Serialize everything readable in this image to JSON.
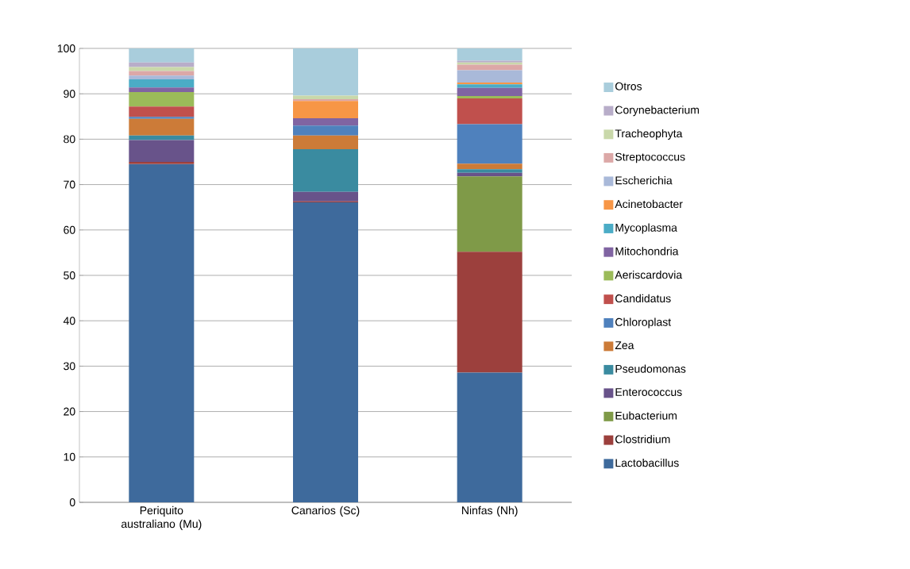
{
  "chart_data": {
    "type": "bar",
    "stacked": true,
    "categories": [
      "Periquito australiano (Mu)",
      "Canarios (Sc)",
      "Ninfas (Nh)"
    ],
    "ylim": [
      0,
      100
    ],
    "yticks": [
      0,
      10,
      20,
      30,
      40,
      50,
      60,
      70,
      80,
      90,
      100
    ],
    "grid": "y",
    "legend": "right",
    "series": [
      {
        "name": "Lactobacillus",
        "color": "#3e6a9c",
        "values": [
          74.5,
          66.1,
          28.6
        ]
      },
      {
        "name": "Clostridium",
        "color": "#9c403d",
        "values": [
          0.5,
          0.2,
          26.6
        ]
      },
      {
        "name": "Eubacterium",
        "color": "#7f9a48",
        "values": [
          0,
          0,
          16.6
        ]
      },
      {
        "name": "Enterococcus",
        "color": "#68538a",
        "values": [
          4.8,
          2.1,
          0.8
        ]
      },
      {
        "name": "Pseudomonas",
        "color": "#3a8ba0",
        "values": [
          1.0,
          9.4,
          0.8
        ]
      },
      {
        "name": "Zea",
        "color": "#cc7b38",
        "values": [
          3.7,
          3.0,
          1.2
        ]
      },
      {
        "name": "Chloroplast",
        "color": "#4f81bd",
        "values": [
          0.4,
          2.2,
          8.7
        ]
      },
      {
        "name": "Candidatus",
        "color": "#c0504d",
        "values": [
          2.3,
          0,
          5.7
        ]
      },
      {
        "name": "Aeriscardovia",
        "color": "#9bbb59",
        "values": [
          3.2,
          0,
          0.5
        ]
      },
      {
        "name": "Mitochondria",
        "color": "#8064a2",
        "values": [
          1.0,
          1.6,
          1.8
        ]
      },
      {
        "name": "Mycoplasma",
        "color": "#4bacc6",
        "values": [
          1.8,
          0,
          0.8
        ]
      },
      {
        "name": "Acinetobacter",
        "color": "#f79646",
        "values": [
          0,
          3.8,
          0.4
        ]
      },
      {
        "name": "Escherichia",
        "color": "#a9b9d9",
        "values": [
          0.8,
          0,
          2.7
        ]
      },
      {
        "name": "Streptococcus",
        "color": "#dca8a7",
        "values": [
          1.0,
          0.4,
          1.2
        ]
      },
      {
        "name": "Tracheophyta",
        "color": "#c9d8aa",
        "values": [
          0.9,
          0.8,
          0.5
        ]
      },
      {
        "name": "Corynebacterium",
        "color": "#b8adc9",
        "values": [
          1.0,
          0,
          0.4
        ]
      },
      {
        "name": "Otros",
        "color": "#a9cddc",
        "values": [
          3.1,
          10.4,
          2.7
        ]
      }
    ]
  }
}
